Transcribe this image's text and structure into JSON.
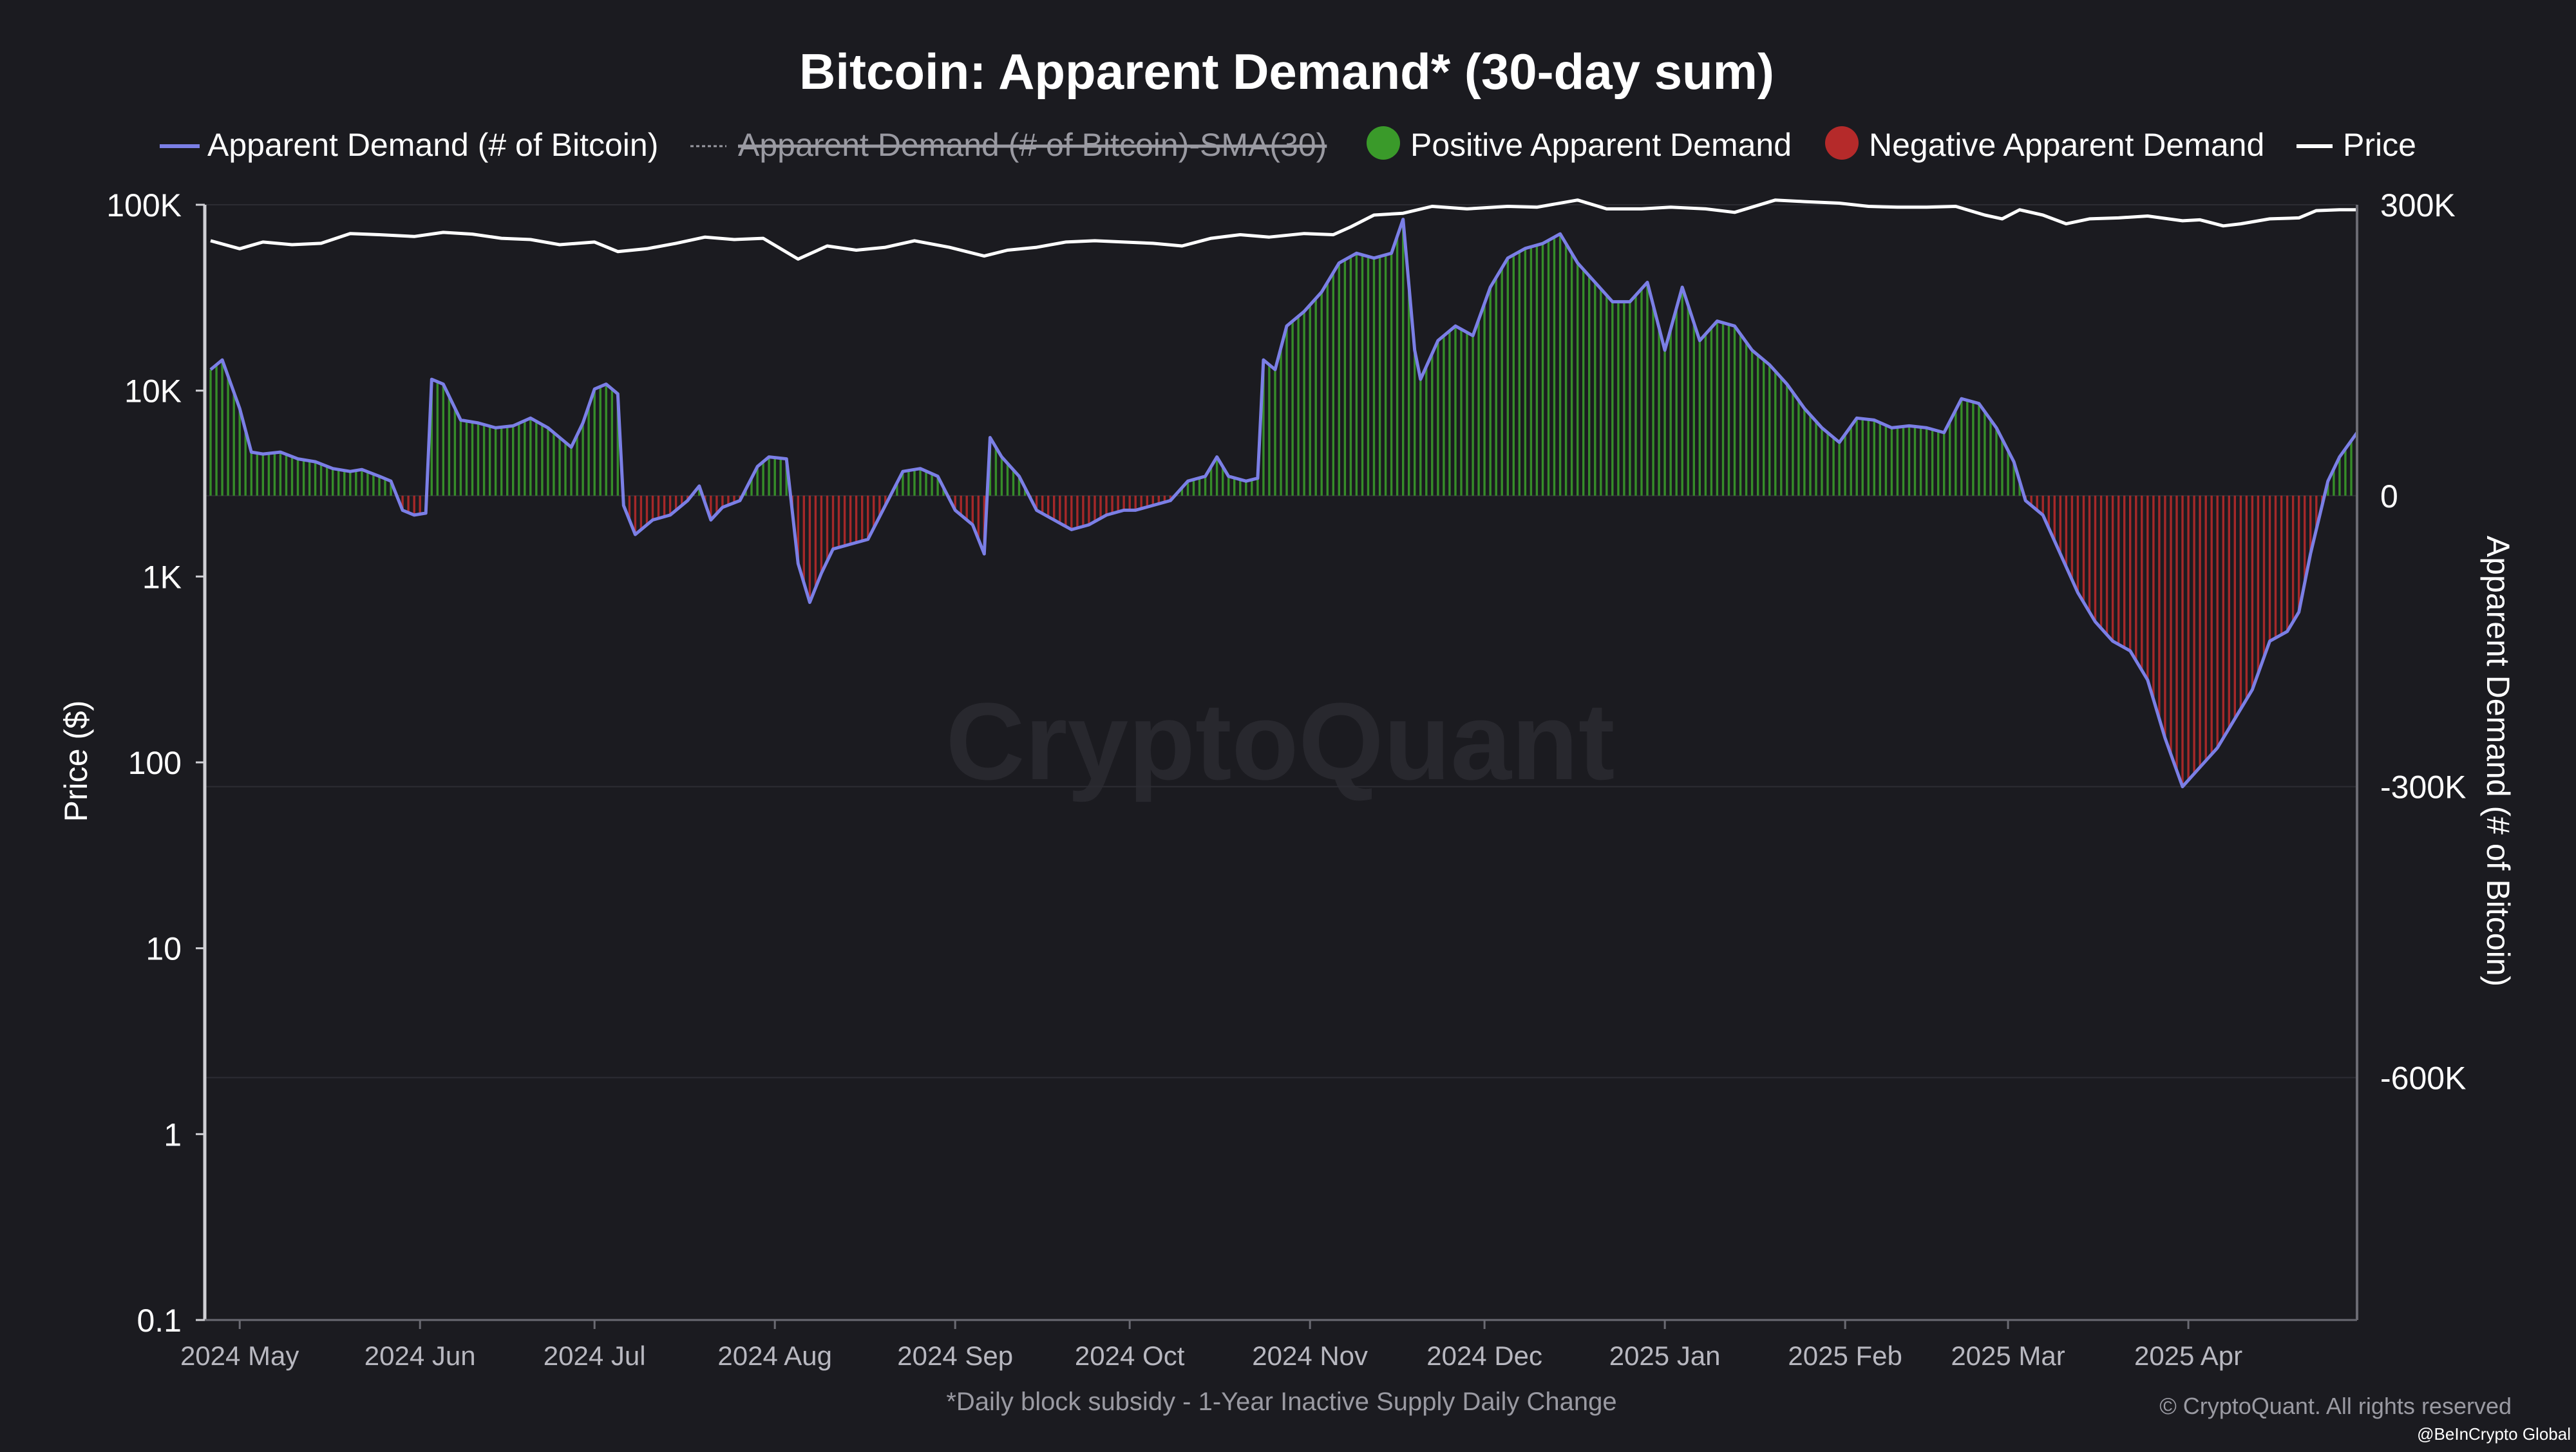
{
  "colors": {
    "background": "#1b1b20",
    "demand_line": "#7b7fe6",
    "positive_bar": "#3a9a2a",
    "negative_bar": "#b52a2a",
    "price_line": "#ffffff",
    "sma_line": "#9a9aa2",
    "grid": "#2c2c33",
    "axis": "#cfcfd4",
    "watermark": "#2a2a30"
  },
  "watermark": "CryptoQuant",
  "copyright": "© CryptoQuant. All rights reserved",
  "credit": "@BeInCrypto Global",
  "chart_data": {
    "type": "line",
    "title": "Bitcoin: Apparent Demand* (30-day sum)",
    "subtitle": "*Daily block subsidy - 1-Year Inactive Supply Daily Change",
    "ylabel_left": "Price ($)",
    "ylabel_right": "Apparent Demand (# of Bitcoin)",
    "xlabel": "",
    "left_axis": {
      "scale": "log",
      "range": [
        0.1,
        100000
      ],
      "ticks": [
        0.1,
        1,
        10,
        100,
        1000,
        10000,
        100000
      ],
      "tick_labels": [
        "0.1",
        "1",
        "10",
        "100",
        "1K",
        "10K",
        "100K"
      ]
    },
    "right_axis": {
      "scale": "linear",
      "range": [
        -850000,
        300000
      ],
      "ticks": [
        300000,
        0,
        -300000,
        -600000
      ],
      "tick_labels": [
        "300K",
        "0",
        "-300K",
        "-600K"
      ]
    },
    "x_range": [
      "2024-04-25",
      "2025-04-30"
    ],
    "x_ticks": [
      "2024-05-01",
      "2024-06-01",
      "2024-07-01",
      "2024-08-01",
      "2024-09-01",
      "2024-10-01",
      "2024-11-01",
      "2024-12-01",
      "2025-01-01",
      "2025-02-01",
      "2025-03-01",
      "2025-04-01"
    ],
    "x_tick_labels": [
      "2024 May",
      "2024 Jun",
      "2024 Jul",
      "2024 Aug",
      "2024 Sep",
      "2024 Oct",
      "2024 Nov",
      "2024 Dec",
      "2025 Jan",
      "2025 Feb",
      "2025 Mar",
      "2025 Apr"
    ],
    "legend": {
      "placement": "top",
      "entries": [
        {
          "name": "Apparent Demand (# of Bitcoin)",
          "symbol": "line",
          "color": "#7b7fe6",
          "hidden": false
        },
        {
          "name": "Apparent Demand (# of Bitcoin)-SMA(30)",
          "symbol": "dashed-line",
          "color": "#9a9aa2",
          "hidden": true
        },
        {
          "name": "Positive Apparent Demand",
          "symbol": "circle",
          "color": "#3a9a2a",
          "hidden": false
        },
        {
          "name": "Negative Apparent Demand",
          "symbol": "circle",
          "color": "#b52a2a",
          "hidden": false
        },
        {
          "name": "Price",
          "symbol": "line",
          "color": "#ffffff",
          "hidden": false
        }
      ]
    },
    "grid": true,
    "series": [
      {
        "name": "Apparent Demand (# of Bitcoin)",
        "axis": "right",
        "points": [
          [
            "2024-04-26",
            130000
          ],
          [
            "2024-04-28",
            140000
          ],
          [
            "2024-05-01",
            90000
          ],
          [
            "2024-05-03",
            45000
          ],
          [
            "2024-05-05",
            43000
          ],
          [
            "2024-05-08",
            45000
          ],
          [
            "2024-05-11",
            38000
          ],
          [
            "2024-05-14",
            35000
          ],
          [
            "2024-05-17",
            28000
          ],
          [
            "2024-05-20",
            25000
          ],
          [
            "2024-05-22",
            27000
          ],
          [
            "2024-05-25",
            20000
          ],
          [
            "2024-05-27",
            15000
          ],
          [
            "2024-05-29",
            -15000
          ],
          [
            "2024-05-31",
            -20000
          ],
          [
            "2024-06-02",
            -18000
          ],
          [
            "2024-06-03",
            120000
          ],
          [
            "2024-06-05",
            115000
          ],
          [
            "2024-06-08",
            78000
          ],
          [
            "2024-06-11",
            75000
          ],
          [
            "2024-06-14",
            70000
          ],
          [
            "2024-06-17",
            72000
          ],
          [
            "2024-06-20",
            80000
          ],
          [
            "2024-06-23",
            70000
          ],
          [
            "2024-06-25",
            60000
          ],
          [
            "2024-06-27",
            50000
          ],
          [
            "2024-06-29",
            75000
          ],
          [
            "2024-07-01",
            110000
          ],
          [
            "2024-07-03",
            115000
          ],
          [
            "2024-07-05",
            105000
          ],
          [
            "2024-07-06",
            -10000
          ],
          [
            "2024-07-08",
            -40000
          ],
          [
            "2024-07-11",
            -25000
          ],
          [
            "2024-07-14",
            -20000
          ],
          [
            "2024-07-17",
            -5000
          ],
          [
            "2024-07-19",
            10000
          ],
          [
            "2024-07-21",
            -25000
          ],
          [
            "2024-07-23",
            -12000
          ],
          [
            "2024-07-26",
            -5000
          ],
          [
            "2024-07-29",
            30000
          ],
          [
            "2024-07-31",
            40000
          ],
          [
            "2024-08-03",
            38000
          ],
          [
            "2024-08-05",
            -70000
          ],
          [
            "2024-08-07",
            -110000
          ],
          [
            "2024-08-09",
            -80000
          ],
          [
            "2024-08-11",
            -55000
          ],
          [
            "2024-08-14",
            -50000
          ],
          [
            "2024-08-17",
            -45000
          ],
          [
            "2024-08-20",
            -10000
          ],
          [
            "2024-08-23",
            25000
          ],
          [
            "2024-08-26",
            28000
          ],
          [
            "2024-08-29",
            20000
          ],
          [
            "2024-09-01",
            -15000
          ],
          [
            "2024-09-04",
            -30000
          ],
          [
            "2024-09-06",
            -60000
          ],
          [
            "2024-09-07",
            60000
          ],
          [
            "2024-09-09",
            40000
          ],
          [
            "2024-09-12",
            20000
          ],
          [
            "2024-09-15",
            -15000
          ],
          [
            "2024-09-18",
            -25000
          ],
          [
            "2024-09-21",
            -35000
          ],
          [
            "2024-09-24",
            -30000
          ],
          [
            "2024-09-27",
            -20000
          ],
          [
            "2024-09-30",
            -15000
          ],
          [
            "2024-10-02",
            -15000
          ],
          [
            "2024-10-05",
            -10000
          ],
          [
            "2024-10-08",
            -5000
          ],
          [
            "2024-10-11",
            15000
          ],
          [
            "2024-10-14",
            20000
          ],
          [
            "2024-10-16",
            40000
          ],
          [
            "2024-10-18",
            20000
          ],
          [
            "2024-10-21",
            15000
          ],
          [
            "2024-10-23",
            18000
          ],
          [
            "2024-10-24",
            140000
          ],
          [
            "2024-10-26",
            130000
          ],
          [
            "2024-10-28",
            175000
          ],
          [
            "2024-10-31",
            190000
          ],
          [
            "2024-11-03",
            210000
          ],
          [
            "2024-11-06",
            240000
          ],
          [
            "2024-11-09",
            250000
          ],
          [
            "2024-11-12",
            245000
          ],
          [
            "2024-11-15",
            250000
          ],
          [
            "2024-11-17",
            285000
          ],
          [
            "2024-11-19",
            150000
          ],
          [
            "2024-11-20",
            120000
          ],
          [
            "2024-11-23",
            160000
          ],
          [
            "2024-11-26",
            175000
          ],
          [
            "2024-11-29",
            165000
          ],
          [
            "2024-12-02",
            215000
          ],
          [
            "2024-12-05",
            245000
          ],
          [
            "2024-12-08",
            255000
          ],
          [
            "2024-12-11",
            260000
          ],
          [
            "2024-12-14",
            270000
          ],
          [
            "2024-12-17",
            240000
          ],
          [
            "2024-12-20",
            220000
          ],
          [
            "2024-12-23",
            200000
          ],
          [
            "2024-12-26",
            200000
          ],
          [
            "2024-12-29",
            220000
          ],
          [
            "2025-01-01",
            150000
          ],
          [
            "2025-01-04",
            215000
          ],
          [
            "2025-01-07",
            160000
          ],
          [
            "2025-01-10",
            180000
          ],
          [
            "2025-01-13",
            175000
          ],
          [
            "2025-01-16",
            150000
          ],
          [
            "2025-01-19",
            135000
          ],
          [
            "2025-01-22",
            115000
          ],
          [
            "2025-01-25",
            90000
          ],
          [
            "2025-01-28",
            70000
          ],
          [
            "2025-01-31",
            55000
          ],
          [
            "2025-02-03",
            80000
          ],
          [
            "2025-02-06",
            78000
          ],
          [
            "2025-02-09",
            70000
          ],
          [
            "2025-02-12",
            72000
          ],
          [
            "2025-02-15",
            70000
          ],
          [
            "2025-02-18",
            65000
          ],
          [
            "2025-02-21",
            100000
          ],
          [
            "2025-02-24",
            95000
          ],
          [
            "2025-02-27",
            70000
          ],
          [
            "2025-03-02",
            35000
          ],
          [
            "2025-03-04",
            -5000
          ],
          [
            "2025-03-07",
            -20000
          ],
          [
            "2025-03-10",
            -60000
          ],
          [
            "2025-03-13",
            -100000
          ],
          [
            "2025-03-16",
            -130000
          ],
          [
            "2025-03-19",
            -150000
          ],
          [
            "2025-03-22",
            -160000
          ],
          [
            "2025-03-25",
            -190000
          ],
          [
            "2025-03-28",
            -250000
          ],
          [
            "2025-03-31",
            -300000
          ],
          [
            "2025-04-03",
            -280000
          ],
          [
            "2025-04-06",
            -260000
          ],
          [
            "2025-04-09",
            -230000
          ],
          [
            "2025-04-12",
            -200000
          ],
          [
            "2025-04-15",
            -150000
          ],
          [
            "2025-04-18",
            -140000
          ],
          [
            "2025-04-20",
            -120000
          ],
          [
            "2025-04-22",
            -60000
          ],
          [
            "2025-04-25",
            15000
          ],
          [
            "2025-04-27",
            40000
          ],
          [
            "2025-04-30",
            65000
          ]
        ]
      },
      {
        "name": "Price",
        "axis": "left",
        "points": [
          [
            "2024-04-26",
            64000
          ],
          [
            "2024-05-01",
            58000
          ],
          [
            "2024-05-05",
            63000
          ],
          [
            "2024-05-10",
            61000
          ],
          [
            "2024-05-15",
            62000
          ],
          [
            "2024-05-20",
            70000
          ],
          [
            "2024-05-25",
            69000
          ],
          [
            "2024-05-31",
            67500
          ],
          [
            "2024-06-05",
            71000
          ],
          [
            "2024-06-10",
            69500
          ],
          [
            "2024-06-15",
            66000
          ],
          [
            "2024-06-20",
            65000
          ],
          [
            "2024-06-25",
            61000
          ],
          [
            "2024-07-01",
            63000
          ],
          [
            "2024-07-05",
            56000
          ],
          [
            "2024-07-10",
            58000
          ],
          [
            "2024-07-15",
            62000
          ],
          [
            "2024-07-20",
            67000
          ],
          [
            "2024-07-25",
            65000
          ],
          [
            "2024-07-30",
            66000
          ],
          [
            "2024-08-05",
            51000
          ],
          [
            "2024-08-10",
            60000
          ],
          [
            "2024-08-15",
            57000
          ],
          [
            "2024-08-20",
            59000
          ],
          [
            "2024-08-25",
            64000
          ],
          [
            "2024-08-31",
            59000
          ],
          [
            "2024-09-06",
            53000
          ],
          [
            "2024-09-10",
            57000
          ],
          [
            "2024-09-15",
            59000
          ],
          [
            "2024-09-20",
            63000
          ],
          [
            "2024-09-25",
            64000
          ],
          [
            "2024-09-30",
            63000
          ],
          [
            "2024-10-05",
            62000
          ],
          [
            "2024-10-10",
            60000
          ],
          [
            "2024-10-15",
            66000
          ],
          [
            "2024-10-20",
            69000
          ],
          [
            "2024-10-25",
            67000
          ],
          [
            "2024-10-31",
            70000
          ],
          [
            "2024-11-05",
            69000
          ],
          [
            "2024-11-08",
            76000
          ],
          [
            "2024-11-12",
            88000
          ],
          [
            "2024-11-17",
            90000
          ],
          [
            "2024-11-22",
            98000
          ],
          [
            "2024-11-28",
            95000
          ],
          [
            "2024-12-05",
            98000
          ],
          [
            "2024-12-10",
            97000
          ],
          [
            "2024-12-17",
            106000
          ],
          [
            "2024-12-22",
            95000
          ],
          [
            "2024-12-28",
            95000
          ],
          [
            "2025-01-02",
            97000
          ],
          [
            "2025-01-08",
            95000
          ],
          [
            "2025-01-13",
            91000
          ],
          [
            "2025-01-20",
            106000
          ],
          [
            "2025-01-25",
            104000
          ],
          [
            "2025-01-31",
            102000
          ],
          [
            "2025-02-05",
            98000
          ],
          [
            "2025-02-10",
            97000
          ],
          [
            "2025-02-15",
            97000
          ],
          [
            "2025-02-20",
            98000
          ],
          [
            "2025-02-25",
            88000
          ],
          [
            "2025-02-28",
            84000
          ],
          [
            "2025-03-03",
            94000
          ],
          [
            "2025-03-07",
            88000
          ],
          [
            "2025-03-11",
            79000
          ],
          [
            "2025-03-15",
            84000
          ],
          [
            "2025-03-20",
            85000
          ],
          [
            "2025-03-25",
            87000
          ],
          [
            "2025-03-31",
            82000
          ],
          [
            "2025-04-03",
            83000
          ],
          [
            "2025-04-07",
            77000
          ],
          [
            "2025-04-10",
            79000
          ],
          [
            "2025-04-15",
            84000
          ],
          [
            "2025-04-20",
            85000
          ],
          [
            "2025-04-23",
            93000
          ],
          [
            "2025-04-27",
            94000
          ],
          [
            "2025-04-30",
            94000
          ]
        ]
      }
    ]
  }
}
